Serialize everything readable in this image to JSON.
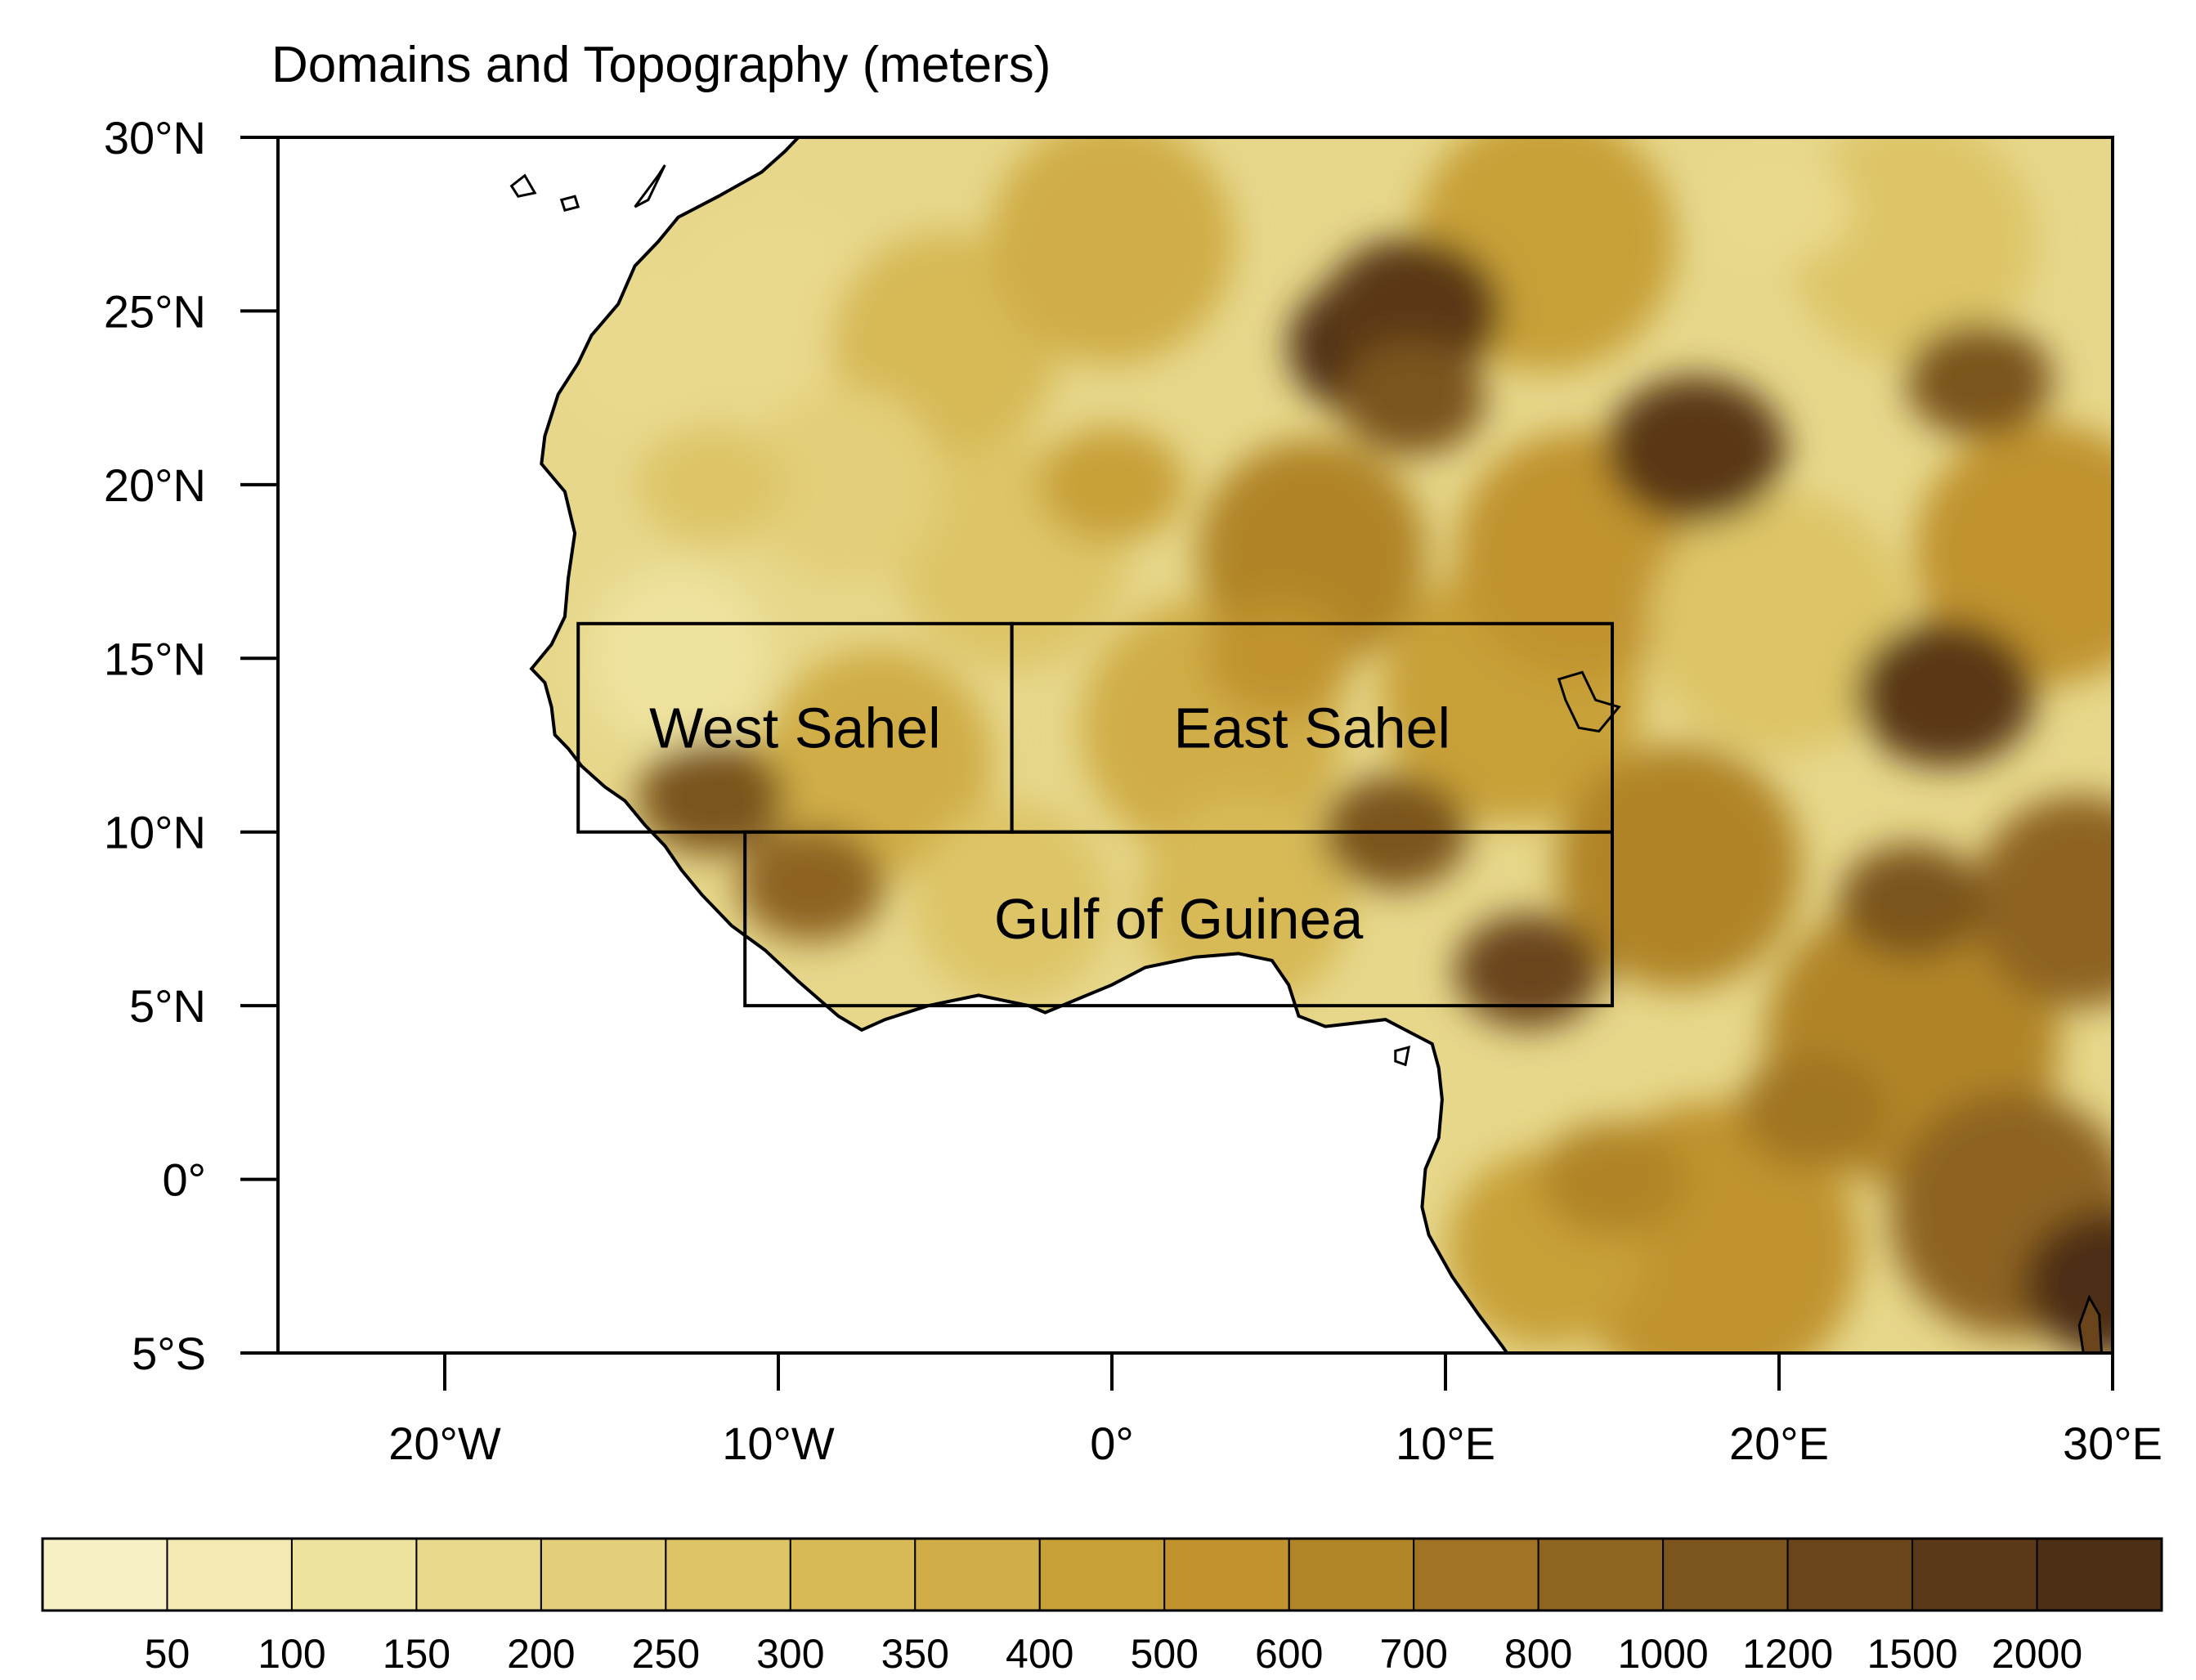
{
  "title": "Domains and Topography (meters)",
  "axes": {
    "lon_min": -25,
    "lon_max": 30,
    "lat_min": -5,
    "lat_max": 30,
    "lat_ticks": [
      {
        "value": 30,
        "label": "30°N"
      },
      {
        "value": 25,
        "label": "25°N"
      },
      {
        "value": 20,
        "label": "20°N"
      },
      {
        "value": 15,
        "label": "15°N"
      },
      {
        "value": 10,
        "label": "10°N"
      },
      {
        "value": 5,
        "label": "5°N"
      },
      {
        "value": 0,
        "label": "0°"
      },
      {
        "value": -5,
        "label": "5°S"
      }
    ],
    "lon_ticks": [
      {
        "value": -20,
        "label": "20°W"
      },
      {
        "value": -10,
        "label": "10°W"
      },
      {
        "value": 0,
        "label": "0°"
      },
      {
        "value": 10,
        "label": "10°E"
      },
      {
        "value": 20,
        "label": "20°E"
      },
      {
        "value": 30,
        "label": "30°E"
      }
    ]
  },
  "domains": [
    {
      "name": "West Sahel",
      "lon": [
        -16,
        -3
      ],
      "lat": [
        10,
        16
      ]
    },
    {
      "name": "East Sahel",
      "lon": [
        -3,
        15
      ],
      "lat": [
        10,
        16
      ]
    },
    {
      "name": "Gulf of Guinea",
      "lon": [
        -11,
        15
      ],
      "lat": [
        5,
        10
      ]
    }
  ],
  "colorbar": {
    "labels": [
      "50",
      "100",
      "150",
      "200",
      "250",
      "300",
      "350",
      "400",
      "500",
      "600",
      "700",
      "800",
      "1000",
      "1200",
      "1500",
      "2000"
    ],
    "colors": [
      "#f7f0c4",
      "#f3e9b2",
      "#eee29f",
      "#e9d98c",
      "#e3cf79",
      "#ddc466",
      "#d7b956",
      "#d0ad46",
      "#c8a038",
      "#c0932e",
      "#b08428",
      "#a07424",
      "#8e6421",
      "#7c541e",
      "#6a451b",
      "#5a3918",
      "#4d2f15"
    ]
  },
  "chart_data": {
    "type": "heatmap",
    "title": "Domains and Topography (meters)",
    "xlim": [
      -25,
      30
    ],
    "ylim": [
      -5,
      30
    ],
    "value_bins": [
      50,
      100,
      150,
      200,
      250,
      300,
      350,
      400,
      500,
      600,
      700,
      800,
      1000,
      1200,
      1500,
      2000
    ],
    "grid": false,
    "legend": "bottom colorbar",
    "features": [
      {
        "lon": 8,
        "lat": 24,
        "value": 2000
      },
      {
        "lon": 9,
        "lat": 25,
        "value": 1500
      },
      {
        "lon": 17.5,
        "lat": 21,
        "value": 1500
      },
      {
        "lon": 25,
        "lat": 14,
        "value": 1500
      },
      {
        "lon": 30,
        "lat": -3,
        "value": 2000
      },
      {
        "lon": 12.5,
        "lat": 6,
        "value": 1200
      },
      {
        "lon": 9,
        "lat": 22.5,
        "value": 1000
      },
      {
        "lon": 26,
        "lat": 23,
        "value": 1000
      },
      {
        "lon": 8.5,
        "lat": 10,
        "value": 1000
      },
      {
        "lon": -12,
        "lat": 11,
        "value": 1000
      },
      {
        "lon": 24,
        "lat": 8,
        "value": 1000
      },
      {
        "lon": -9,
        "lat": 8.5,
        "value": 800
      },
      {
        "lon": 5,
        "lat": 15,
        "value": 500
      },
      {
        "lon": 0,
        "lat": 20,
        "value": 400
      },
      {
        "lon": -12,
        "lat": 20,
        "value": 250
      },
      {
        "lon": 20,
        "lat": 28,
        "value": 150
      },
      {
        "lon": 15,
        "lat": 0,
        "value": 600
      },
      {
        "lon": 21,
        "lat": 2,
        "value": 700
      }
    ]
  }
}
